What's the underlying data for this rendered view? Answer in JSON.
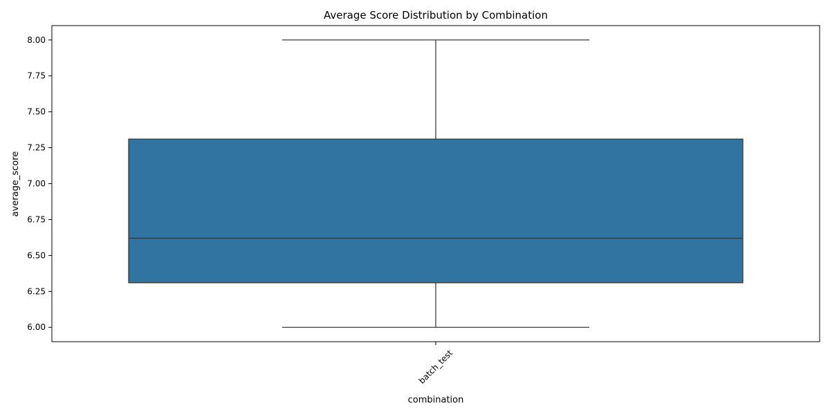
{
  "chart_data": {
    "type": "box",
    "title": "Average Score Distribution by Combination",
    "xlabel": "combination",
    "ylabel": "average_score",
    "categories": [
      "batch_test"
    ],
    "boxes": [
      {
        "category": "batch_test",
        "whisker_low": 6.0,
        "q1": 6.31,
        "median": 6.62,
        "q3": 7.31,
        "whisker_high": 8.0
      }
    ],
    "ylim": [
      5.9,
      8.1
    ],
    "yticks": [
      "6.00",
      "6.25",
      "6.50",
      "6.75",
      "7.00",
      "7.25",
      "7.50",
      "7.75",
      "8.00"
    ],
    "xtick_rotation": 45,
    "grid": false,
    "box_color": "#3274a1",
    "line_color": "#3a3a3a"
  }
}
